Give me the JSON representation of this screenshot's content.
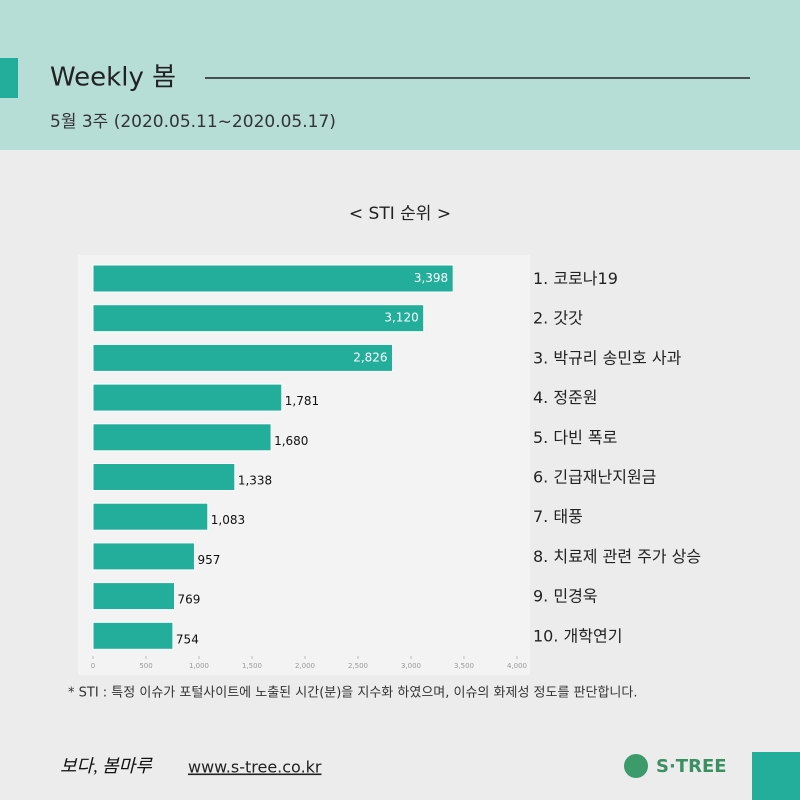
{
  "header": {
    "title": "Weekly 봄",
    "subtitle": "5월 3주 (2020.05.11~2020.05.17)"
  },
  "chart_data": {
    "type": "bar",
    "orientation": "horizontal",
    "title": "< STI 순위 >",
    "categories": [
      "1. 코로나19",
      "2. 갓갓",
      "3. 박규리 송민호 사과",
      "4. 정준원",
      "5. 다빈 폭로",
      "6. 긴급재난지원금",
      "7. 태풍",
      "8. 치료제 관련 주가 상승",
      "9. 민경욱",
      "10. 개학연기"
    ],
    "values": [
      3398,
      3120,
      2826,
      1781,
      1680,
      1338,
      1083,
      957,
      769,
      754
    ],
    "value_labels": [
      "3,398",
      "3,120",
      "2,826",
      "1,781",
      "1,680",
      "1,338",
      "1,083",
      "957",
      "769",
      "754"
    ],
    "color": "#22ae9b",
    "xlim": [
      0,
      4000
    ],
    "xticks": [
      0,
      500,
      {
        "value": 1000,
        "label": "1,000"
      },
      {
        "value": 1500,
        "label": "1,500"
      },
      {
        "value": 2000,
        "label": "2,000"
      },
      {
        "value": 2500,
        "label": "2,500"
      },
      {
        "value": 3000,
        "label": "3,000"
      },
      {
        "value": 3500,
        "label": "3,500"
      },
      {
        "value": 4000,
        "label": "4,000"
      }
    ],
    "grid": false
  },
  "footnote": "* STI : 특정 이슈가 포털사이트에 노출된 시간(분)을 지수화 하였으며, 이슈의 화제성 정도를 판단합니다.",
  "footer": {
    "brand": "보다, 봄마루",
    "url": "www.s-tree.co.kr",
    "logo": "S·TREE"
  }
}
